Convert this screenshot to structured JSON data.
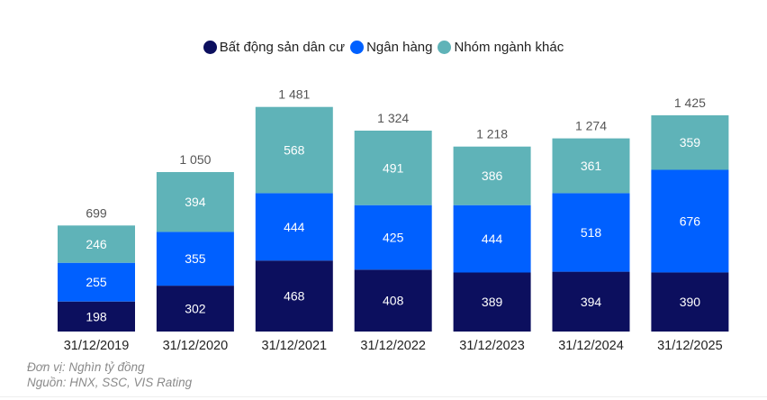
{
  "chart_data": {
    "type": "bar",
    "stacked": true,
    "title": "",
    "xlabel": "",
    "ylabel": "",
    "categories": [
      "31/12/2019",
      "31/12/2020",
      "31/12/2021",
      "31/12/2022",
      "31/12/2023",
      "31/12/2024",
      "31/12/2025"
    ],
    "series": [
      {
        "name": "Bất động sản dân cư",
        "color": "#0c0f5e",
        "values": [
          198,
          302,
          468,
          408,
          389,
          394,
          390
        ]
      },
      {
        "name": "Ngân hàng",
        "color": "#0060ff",
        "values": [
          255,
          355,
          444,
          425,
          444,
          518,
          676
        ]
      },
      {
        "name": "Nhóm ngành khác",
        "color": "#5fb3b8",
        "values": [
          246,
          394,
          568,
          491,
          386,
          361,
          359
        ]
      }
    ],
    "totals": [
      699,
      1050,
      1481,
      1324,
      1218,
      1274,
      1425
    ],
    "total_labels": [
      "699",
      "1 050",
      "1 481",
      "1 324",
      "1 218",
      "1 274",
      "1 425"
    ],
    "ylim": [
      0,
      1425
    ],
    "grid": false,
    "legend_position": "top-center",
    "label_color_inside": "#ffffff",
    "total_label_color": "#555555"
  },
  "legend": [
    {
      "label": "Bất động sản dân cư",
      "color": "#0c0f5e"
    },
    {
      "label": "Ngân hàng",
      "color": "#0060ff"
    },
    {
      "label": "Nhóm ngành khác",
      "color": "#5fb3b8"
    }
  ],
  "footnotes": {
    "unit": "Đơn vị: Nghìn tỷ đồng",
    "source": "Nguồn: HNX, SSC, VIS Rating"
  }
}
